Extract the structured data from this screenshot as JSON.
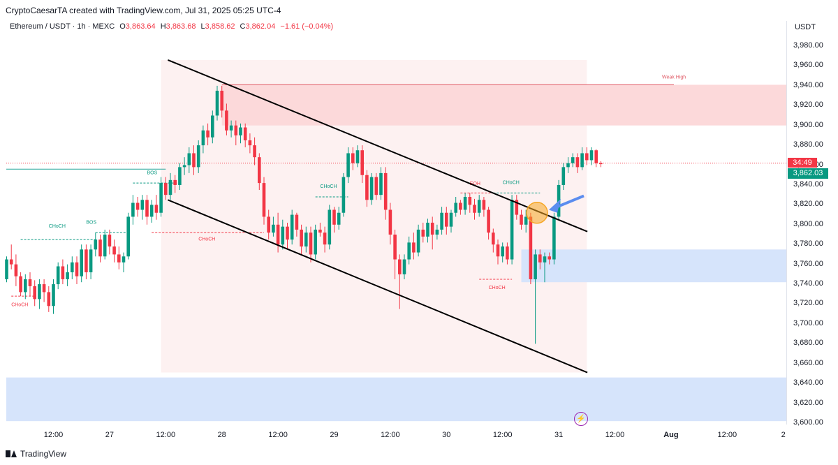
{
  "header": {
    "credit": "CryptoCaesarTA created with TradingView.com, Jul 31, 2025 05:25 UTC-4"
  },
  "legend": {
    "symbol": "Ethereum / USDT · 1h · MEXC",
    "open_label": "O",
    "open": "3,863.64",
    "high_label": "H",
    "high": "3,863.68",
    "low_label": "L",
    "low": "3,858.62",
    "close_label": "C",
    "close": "3,862.04",
    "change": "−1.61 (−0.04%)"
  },
  "price_axis": {
    "unit": "USDT",
    "countdown": "34:49",
    "last_price": "3,862.03"
  },
  "footer": {
    "brand": "TradingView"
  },
  "icons": {
    "logo": "tradingview-logo-icon",
    "event": "lightning-icon"
  },
  "colors": {
    "up": "#089981",
    "down": "#f23645",
    "zone_supply": "#fcd9da",
    "zone_demand": "#d6e4fb",
    "arrow": "#5b8def",
    "highlight": "#f6a623"
  },
  "chart_data": {
    "type": "candlestick",
    "title": "",
    "ylim": [
      3600,
      3990
    ],
    "y_ticks": [
      "3,600.00",
      "3,620.00",
      "3,640.00",
      "3,660.00",
      "3,680.00",
      "3,700.00",
      "3,720.00",
      "3,740.00",
      "3,760.00",
      "3,780.00",
      "3,800.00",
      "3,820.00",
      "3,840.00",
      "3,860.00",
      "3,880.00",
      "3,900.00",
      "3,920.00",
      "3,940.00",
      "3,960.00",
      "3,980.00"
    ],
    "y_tick_values": [
      3600,
      3620,
      3640,
      3660,
      3680,
      3700,
      3720,
      3740,
      3760,
      3780,
      3800,
      3820,
      3840,
      3860,
      3880,
      3900,
      3920,
      3940,
      3960,
      3980
    ],
    "x_ticks": [
      {
        "label": "12:00",
        "i": 10
      },
      {
        "label": "27",
        "i": 22
      },
      {
        "label": "12:00",
        "i": 34
      },
      {
        "label": "28",
        "i": 46
      },
      {
        "label": "12:00",
        "i": 58
      },
      {
        "label": "29",
        "i": 70
      },
      {
        "label": "12:00",
        "i": 82
      },
      {
        "label": "30",
        "i": 94
      },
      {
        "label": "12:00",
        "i": 106
      },
      {
        "label": "31",
        "i": 118
      },
      {
        "label": "12:00",
        "i": 130
      },
      {
        "label": "Aug",
        "i": 142,
        "bold": true
      },
      {
        "label": "12:00",
        "i": 154
      },
      {
        "label": "2",
        "i": 166
      }
    ],
    "candles": [
      [
        3745,
        3765,
        3742,
        3768
      ],
      [
        3765,
        3760,
        3755,
        3780
      ],
      [
        3760,
        3748,
        3738,
        3770
      ],
      [
        3748,
        3732,
        3728,
        3752
      ],
      [
        3732,
        3745,
        3725,
        3750
      ],
      [
        3745,
        3738,
        3728,
        3752
      ],
      [
        3738,
        3725,
        3718,
        3744
      ],
      [
        3725,
        3740,
        3715,
        3745
      ],
      [
        3740,
        3732,
        3722,
        3745
      ],
      [
        3732,
        3718,
        3712,
        3738
      ],
      [
        3718,
        3740,
        3710,
        3745
      ],
      [
        3740,
        3758,
        3735,
        3762
      ],
      [
        3758,
        3745,
        3740,
        3765
      ],
      [
        3745,
        3752,
        3738,
        3760
      ],
      [
        3752,
        3762,
        3745,
        3768
      ],
      [
        3762,
        3748,
        3740,
        3768
      ],
      [
        3748,
        3775,
        3742,
        3780
      ],
      [
        3775,
        3752,
        3745,
        3780
      ],
      [
        3752,
        3775,
        3745,
        3780
      ],
      [
        3775,
        3785,
        3768,
        3792
      ],
      [
        3785,
        3768,
        3762,
        3790
      ],
      [
        3768,
        3790,
        3765,
        3795
      ],
      [
        3790,
        3778,
        3770,
        3795
      ],
      [
        3778,
        3770,
        3762,
        3785
      ],
      [
        3770,
        3762,
        3755,
        3778
      ],
      [
        3762,
        3768,
        3752,
        3772
      ],
      [
        3768,
        3808,
        3765,
        3812
      ],
      [
        3808,
        3822,
        3800,
        3830
      ],
      [
        3822,
        3815,
        3808,
        3828
      ],
      [
        3815,
        3825,
        3805,
        3830
      ],
      [
        3825,
        3808,
        3800,
        3830
      ],
      [
        3808,
        3820,
        3802,
        3825
      ],
      [
        3820,
        3812,
        3805,
        3830
      ],
      [
        3812,
        3842,
        3808,
        3848
      ],
      [
        3842,
        3830,
        3825,
        3848
      ],
      [
        3830,
        3845,
        3825,
        3852
      ],
      [
        3845,
        3840,
        3832,
        3850
      ],
      [
        3840,
        3858,
        3835,
        3862
      ],
      [
        3858,
        3860,
        3850,
        3868
      ],
      [
        3860,
        3872,
        3852,
        3878
      ],
      [
        3872,
        3858,
        3850,
        3880
      ],
      [
        3858,
        3880,
        3852,
        3885
      ],
      [
        3880,
        3895,
        3872,
        3900
      ],
      [
        3895,
        3888,
        3880,
        3902
      ],
      [
        3888,
        3910,
        3882,
        3915
      ],
      [
        3910,
        3935,
        3905,
        3940
      ],
      [
        3935,
        3915,
        3908,
        3940
      ],
      [
        3915,
        3895,
        3890,
        3922
      ],
      [
        3895,
        3900,
        3888,
        3905
      ],
      [
        3900,
        3890,
        3880,
        3905
      ],
      [
        3890,
        3898,
        3882,
        3902
      ],
      [
        3898,
        3885,
        3878,
        3902
      ],
      [
        3885,
        3880,
        3872,
        3892
      ],
      [
        3880,
        3868,
        3860,
        3888
      ],
      [
        3868,
        3842,
        3835,
        3872
      ],
      [
        3842,
        3808,
        3800,
        3848
      ],
      [
        3808,
        3792,
        3785,
        3815
      ],
      [
        3792,
        3800,
        3788,
        3808
      ],
      [
        3800,
        3780,
        3772,
        3812
      ],
      [
        3780,
        3798,
        3775,
        3805
      ],
      [
        3798,
        3785,
        3775,
        3802
      ],
      [
        3785,
        3810,
        3780,
        3815
      ],
      [
        3810,
        3795,
        3788,
        3812
      ],
      [
        3795,
        3778,
        3770,
        3800
      ],
      [
        3778,
        3792,
        3772,
        3798
      ],
      [
        3792,
        3770,
        3762,
        3798
      ],
      [
        3770,
        3795,
        3765,
        3800
      ],
      [
        3795,
        3792,
        3788,
        3802
      ],
      [
        3792,
        3780,
        3772,
        3798
      ],
      [
        3780,
        3815,
        3775,
        3820
      ],
      [
        3815,
        3800,
        3792,
        3818
      ],
      [
        3800,
        3812,
        3795,
        3818
      ],
      [
        3812,
        3848,
        3808,
        3852
      ],
      [
        3848,
        3872,
        3842,
        3878
      ],
      [
        3872,
        3862,
        3855,
        3878
      ],
      [
        3862,
        3875,
        3858,
        3880
      ],
      [
        3875,
        3850,
        3842,
        3880
      ],
      [
        3850,
        3825,
        3818,
        3855
      ],
      [
        3825,
        3848,
        3820,
        3852
      ],
      [
        3848,
        3830,
        3825,
        3852
      ],
      [
        3830,
        3852,
        3825,
        3858
      ],
      [
        3852,
        3815,
        3805,
        3858
      ],
      [
        3815,
        3790,
        3780,
        3822
      ],
      [
        3790,
        3765,
        3745,
        3795
      ],
      [
        3765,
        3750,
        3715,
        3770
      ],
      [
        3750,
        3765,
        3745,
        3770
      ],
      [
        3765,
        3782,
        3760,
        3788
      ],
      [
        3782,
        3772,
        3765,
        3792
      ],
      [
        3772,
        3795,
        3768,
        3800
      ],
      [
        3795,
        3788,
        3782,
        3802
      ],
      [
        3788,
        3802,
        3782,
        3806
      ],
      [
        3802,
        3790,
        3775,
        3808
      ],
      [
        3790,
        3795,
        3785,
        3800
      ],
      [
        3795,
        3812,
        3790,
        3818
      ],
      [
        3812,
        3798,
        3790,
        3818
      ],
      [
        3798,
        3812,
        3792,
        3815
      ],
      [
        3812,
        3822,
        3808,
        3828
      ],
      [
        3822,
        3815,
        3810,
        3825
      ],
      [
        3815,
        3828,
        3810,
        3832
      ],
      [
        3828,
        3820,
        3812,
        3832
      ],
      [
        3820,
        3812,
        3805,
        3826
      ],
      [
        3812,
        3825,
        3808,
        3830
      ],
      [
        3825,
        3815,
        3808,
        3828
      ],
      [
        3815,
        3792,
        3785,
        3818
      ],
      [
        3792,
        3780,
        3772,
        3796
      ],
      [
        3780,
        3768,
        3760,
        3785
      ],
      [
        3768,
        3778,
        3762,
        3782
      ],
      [
        3778,
        3765,
        3760,
        3782
      ],
      [
        3765,
        3825,
        3760,
        3830
      ],
      [
        3825,
        3810,
        3805,
        3830
      ],
      [
        3810,
        3800,
        3795,
        3815
      ],
      [
        3800,
        3808,
        3792,
        3815
      ],
      [
        3808,
        3745,
        3740,
        3812
      ],
      [
        3745,
        3770,
        3680,
        3775
      ],
      [
        3770,
        3762,
        3755,
        3775
      ],
      [
        3762,
        3768,
        3742,
        3772
      ],
      [
        3768,
        3765,
        3760,
        3772
      ],
      [
        3765,
        3808,
        3760,
        3812
      ],
      [
        3808,
        3840,
        3805,
        3845
      ],
      [
        3840,
        3858,
        3835,
        3862
      ],
      [
        3858,
        3862,
        3852,
        3868
      ],
      [
        3862,
        3868,
        3858,
        3872
      ],
      [
        3868,
        3858,
        3852,
        3872
      ],
      [
        3858,
        3872,
        3855,
        3878
      ],
      [
        3872,
        3865,
        3860,
        3878
      ],
      [
        3865,
        3875,
        3860,
        3878
      ],
      [
        3875,
        3862,
        3858,
        3876
      ],
      [
        3862,
        3861,
        3858,
        3864
      ]
    ],
    "zones": [
      {
        "label": "Weak High",
        "top": 3941,
        "bottom": 3900,
        "kind": "supply"
      },
      {
        "label": "",
        "top": 3775,
        "bottom": 3742,
        "kind": "demand"
      },
      {
        "label": "",
        "top": 3646,
        "bottom": 3602,
        "kind": "demand"
      }
    ],
    "annotations": [
      "CHoCH",
      "CHoCH",
      "BOS",
      "BOS",
      "CHoCH",
      "CHoCH",
      "EQH",
      "CHoCH",
      "CHoCH"
    ],
    "channel": {
      "upper": [
        [
          27,
          3966
        ],
        [
          128,
          3793
        ]
      ],
      "lower": [
        [
          27,
          3825
        ],
        [
          128,
          3651
        ]
      ]
    }
  }
}
